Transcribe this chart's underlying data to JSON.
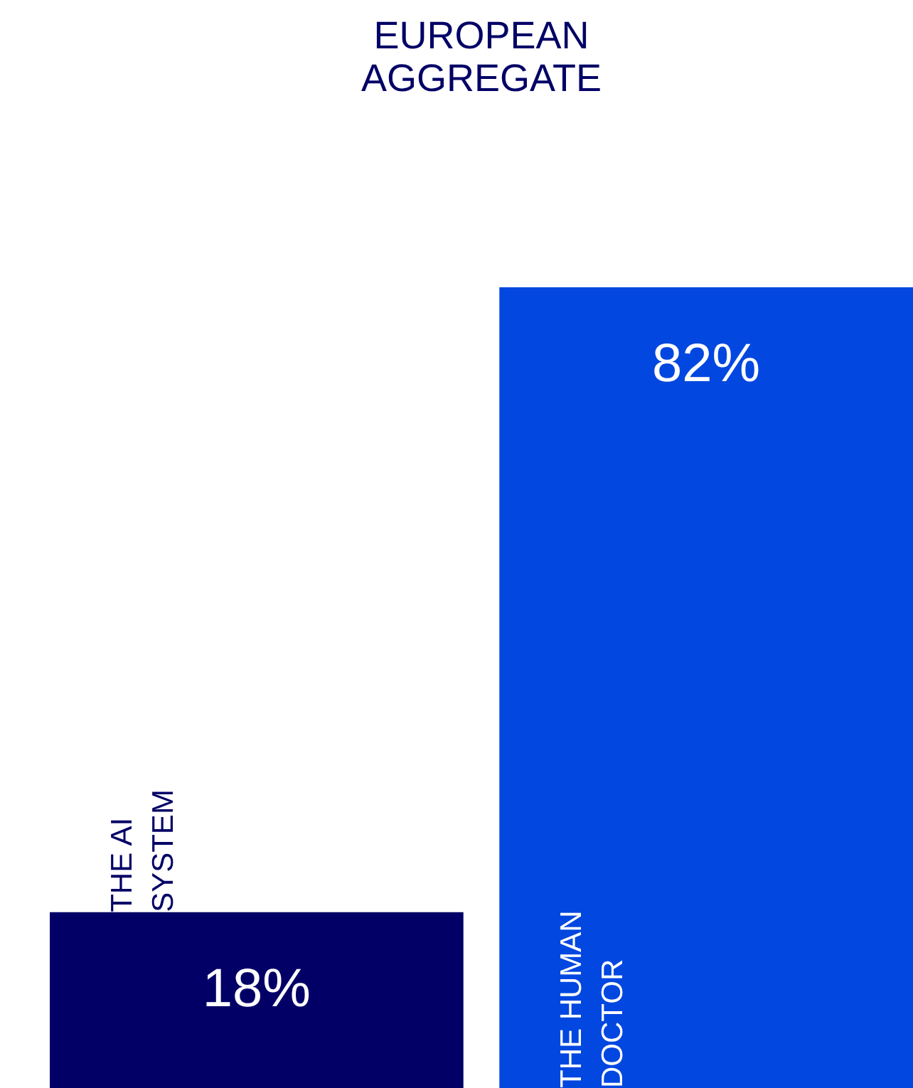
{
  "chart_data": {
    "type": "bar",
    "title": "EUROPEAN AGGREGATE",
    "categories": [
      "THE AI SYSTEM",
      "THE HUMAN DOCTOR"
    ],
    "values": [
      18,
      82
    ],
    "colors": [
      "#020066",
      "#0247e0"
    ],
    "data_labels": true,
    "value_labels": [
      "18%",
      "82%"
    ]
  }
}
